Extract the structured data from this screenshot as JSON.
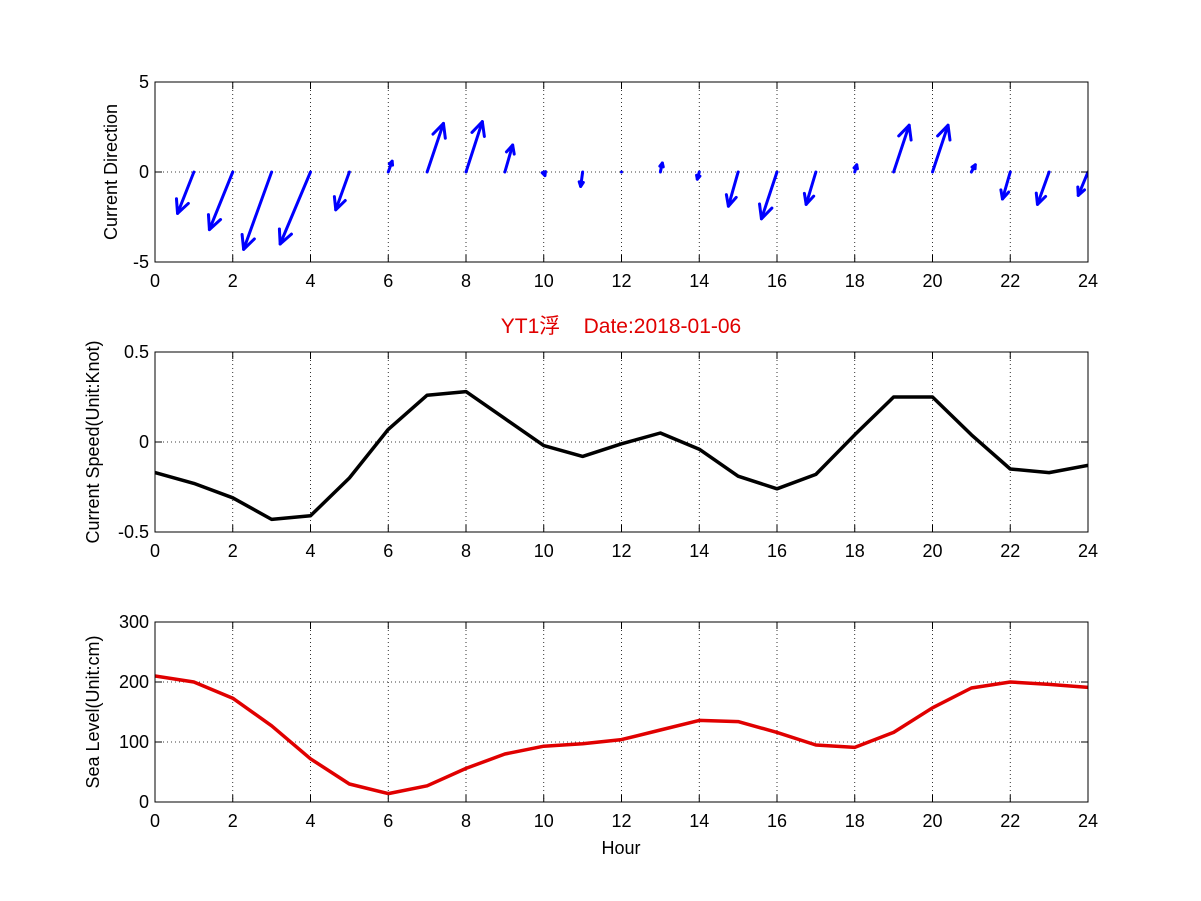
{
  "chart_data": [
    {
      "type": "quiver",
      "ylabel": "Current Direction",
      "xlim": [
        0,
        24
      ],
      "ylim": [
        -5,
        5
      ],
      "xticks": [
        0,
        2,
        4,
        6,
        8,
        10,
        12,
        14,
        16,
        18,
        20,
        22,
        24
      ],
      "yticks": [
        -5,
        0,
        5
      ],
      "grid": true,
      "color": "#0000ff",
      "series": [
        {
          "x": [
            1,
            2,
            3,
            4,
            5,
            6,
            7,
            8,
            9,
            10,
            11,
            12,
            13,
            14,
            15,
            16,
            17,
            18,
            19,
            20,
            21,
            22,
            23,
            24
          ],
          "u": [
            -0.42,
            -0.6,
            -0.72,
            -0.78,
            -0.35,
            0.1,
            0.42,
            0.42,
            0.2,
            0.03,
            -0.05,
            0.0,
            0.05,
            -0.05,
            -0.25,
            -0.4,
            -0.25,
            0.05,
            0.4,
            0.4,
            0.1,
            -0.2,
            -0.3,
            -0.25
          ],
          "v": [
            -2.3,
            -3.2,
            -4.3,
            -4.0,
            -2.1,
            0.6,
            2.7,
            2.8,
            1.5,
            -0.2,
            -0.8,
            0.0,
            0.5,
            -0.4,
            -1.9,
            -2.6,
            -1.8,
            0.4,
            2.6,
            2.6,
            0.4,
            -1.5,
            -1.8,
            -1.3
          ]
        }
      ]
    },
    {
      "type": "line",
      "title": "YT1浮    Date:2018-01-06",
      "ylabel": "Current Speed(Unit:Knot)",
      "xlim": [
        0,
        24
      ],
      "ylim": [
        -0.5,
        0.5
      ],
      "xticks": [
        0,
        2,
        4,
        6,
        8,
        10,
        12,
        14,
        16,
        18,
        20,
        22,
        24
      ],
      "yticks": [
        -0.5,
        0,
        0.5
      ],
      "grid": true,
      "color": "#000000",
      "title_color": "#e00000",
      "series": [
        {
          "x": [
            0,
            1,
            2,
            3,
            4,
            5,
            6,
            7,
            8,
            9,
            10,
            11,
            12,
            13,
            14,
            15,
            16,
            17,
            18,
            19,
            20,
            21,
            22,
            23,
            24
          ],
          "values": [
            -0.17,
            -0.23,
            -0.31,
            -0.43,
            -0.41,
            -0.2,
            0.07,
            0.26,
            0.28,
            0.13,
            -0.02,
            -0.08,
            -0.01,
            0.05,
            -0.04,
            -0.19,
            -0.26,
            -0.18,
            0.04,
            0.25,
            0.25,
            0.04,
            -0.15,
            -0.17,
            -0.13
          ]
        }
      ]
    },
    {
      "type": "line",
      "xlabel": "Hour",
      "ylabel": "Sea Level(Unit:cm)",
      "xlim": [
        0,
        24
      ],
      "ylim": [
        0,
        300
      ],
      "xticks": [
        0,
        2,
        4,
        6,
        8,
        10,
        12,
        14,
        16,
        18,
        20,
        22,
        24
      ],
      "yticks": [
        0,
        100,
        200,
        300
      ],
      "grid": true,
      "color": "#e00000",
      "series": [
        {
          "x": [
            0,
            1,
            2,
            3,
            4,
            5,
            6,
            7,
            8,
            9,
            10,
            11,
            12,
            13,
            14,
            15,
            16,
            17,
            18,
            19,
            20,
            21,
            22,
            23,
            24
          ],
          "values": [
            210,
            200,
            173,
            127,
            72,
            30,
            14,
            27,
            56,
            80,
            93,
            97,
            104,
            120,
            136,
            134,
            116,
            95,
            91,
            116,
            157,
            190,
            200,
            196,
            191
          ]
        }
      ]
    }
  ]
}
